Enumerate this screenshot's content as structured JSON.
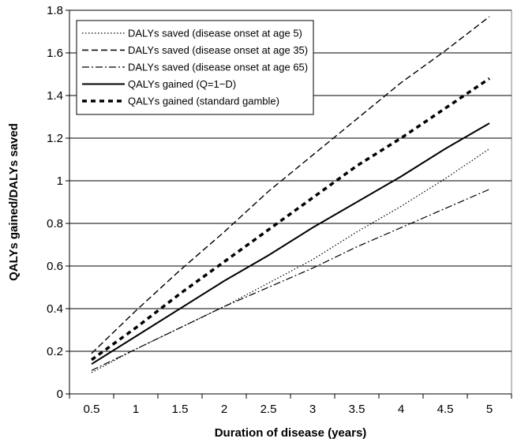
{
  "chart_data": {
    "type": "line",
    "title": "",
    "xlabel": "Duration of disease (years)",
    "ylabel": "QALYs gained/DALYs saved",
    "x": [
      0.5,
      1,
      1.5,
      2,
      2.5,
      3,
      3.5,
      4,
      4.5,
      5
    ],
    "x_tick_labels": [
      "0.5",
      "1",
      "1.5",
      "2",
      "2.5",
      "3",
      "3.5",
      "4",
      "4.5",
      "5"
    ],
    "y_tick_labels": [
      "0",
      "0.2",
      "0.4",
      "0.6",
      "0.8",
      "1",
      "1.2",
      "1.4",
      "1.6",
      "1.8"
    ],
    "ylim": [
      0,
      1.8
    ],
    "grid": "horizontal",
    "legend_position": "top-left",
    "series": [
      {
        "name": "DALYs saved (disease onset at age 5)",
        "style": "dotted",
        "values": [
          0.1,
          0.21,
          0.31,
          0.41,
          0.52,
          0.63,
          0.76,
          0.88,
          1.01,
          1.15
        ]
      },
      {
        "name": "DALYs saved (disease onset at age 35)",
        "style": "dashed",
        "values": [
          0.19,
          0.39,
          0.58,
          0.76,
          0.95,
          1.12,
          1.29,
          1.46,
          1.61,
          1.77
        ]
      },
      {
        "name": "DALYs saved (disease onset at age 65)",
        "style": "dashdot",
        "values": [
          0.11,
          0.21,
          0.31,
          0.41,
          0.5,
          0.59,
          0.69,
          0.78,
          0.87,
          0.96
        ]
      },
      {
        "name": "QALYs gained (Q=1−D)",
        "style": "solid",
        "values": [
          0.14,
          0.27,
          0.4,
          0.53,
          0.65,
          0.78,
          0.9,
          1.02,
          1.15,
          1.27
        ]
      },
      {
        "name": "QALYs gained (standard gamble)",
        "style": "heavy-dashed",
        "values": [
          0.16,
          0.31,
          0.47,
          0.62,
          0.77,
          0.92,
          1.07,
          1.2,
          1.34,
          1.48
        ]
      }
    ]
  }
}
